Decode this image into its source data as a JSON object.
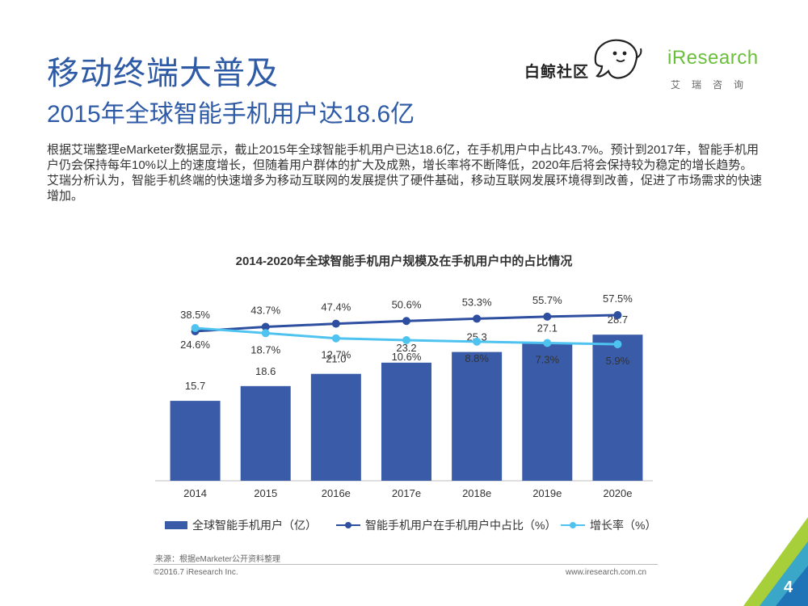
{
  "slide": {
    "title": "移动终端大普及",
    "subtitle": "2015年全球智能手机用户达18.6亿",
    "body": [
      "根据艾瑞整理eMarketer数据显示，截止2015年全球智能手机用户已达18.6亿，在手机用户中占比43.7%。预计到2017年，智能手机用户仍会保持每年10%以上的速度增长，但随着用户群体的扩大及成熟，增长率将不断降低，2020年后将会保持较为稳定的增长趋势。",
      "艾瑞分析认为，智能手机终端的快速增多为移动互联网的发展提供了硬件基础，移动互联网发展环境得到改善，促进了市场需求的快速增加。"
    ],
    "page_number": "4"
  },
  "logos": {
    "baijing_text": "白鲸社区",
    "iresearch_brand": "iResearch",
    "iresearch_sub": "艾瑞咨询"
  },
  "footer": {
    "source": "来源：根据eMarketer公开资料整理",
    "copyright": "©2016.7 iResearch Inc.",
    "website": "www.iresearch.com.cn"
  },
  "colors": {
    "bar": "#3a5ba7",
    "share_line": "#2e4fa0",
    "growth_line": "#4fc3f0",
    "title": "#2e5aa6",
    "corner_green": "#a6cf3a"
  },
  "chart_data": {
    "type": "bar",
    "title": "2014-2020年全球智能手机用户规模及在手机用户中的占比情况",
    "categories": [
      "2014",
      "2015",
      "2016e",
      "2017e",
      "2018e",
      "2019e",
      "2020e"
    ],
    "series": [
      {
        "name": "全球智能手机用户（亿）",
        "type": "bar",
        "values": [
          15.7,
          18.6,
          21.0,
          23.2,
          25.3,
          27.1,
          28.7
        ],
        "labels": [
          "15.7",
          "18.6",
          "21.0",
          "23.2",
          "25.3",
          "27.1",
          "28.7"
        ]
      },
      {
        "name": "智能手机用户在手机用户中占比（%）",
        "type": "line",
        "values": [
          38.5,
          43.7,
          47.4,
          50.6,
          53.3,
          55.7,
          57.5
        ],
        "labels": [
          "38.5%",
          "43.7%",
          "47.4%",
          "50.6%",
          "53.3%",
          "55.7%",
          "57.5%"
        ]
      },
      {
        "name": "增长率（%）",
        "type": "line",
        "values": [
          24.6,
          18.7,
          12.7,
          10.6,
          8.8,
          7.3,
          5.9
        ],
        "labels": [
          "24.6%",
          "18.7%",
          "12.7%",
          "10.6%",
          "8.8%",
          "7.3%",
          "5.9%"
        ]
      }
    ],
    "legend_position": "bottom",
    "grid": false
  }
}
